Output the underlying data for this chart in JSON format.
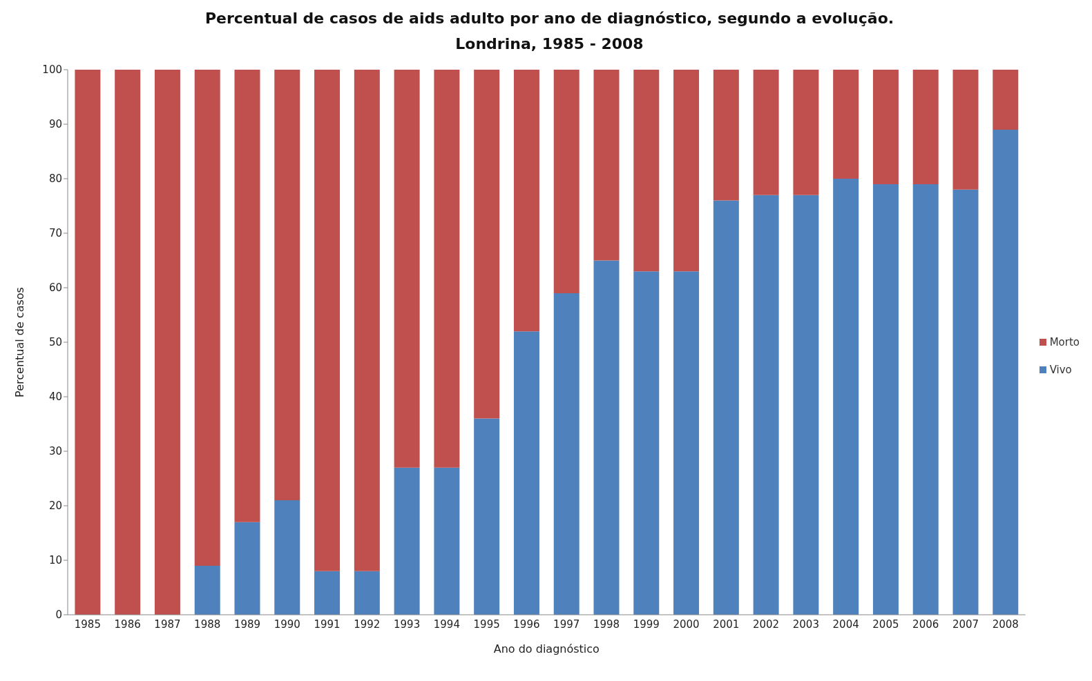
{
  "chart_data": {
    "type": "bar",
    "title": "Percentual de casos de aids adulto por ano de diagnóstico, segundo a evolução.",
    "subtitle": "Londrina, 1985  - 2008",
    "xlabel": "Ano do diagnóstico",
    "ylabel": "Percentual de casos",
    "categories": [
      "1985",
      "1986",
      "1987",
      "1988",
      "1989",
      "1990",
      "1991",
      "1992",
      "1993",
      "1994",
      "1995",
      "1996",
      "1997",
      "1998",
      "1999",
      "2000",
      "2001",
      "2002",
      "2003",
      "2004",
      "2005",
      "2006",
      "2007",
      "2008"
    ],
    "stacked": true,
    "series": [
      {
        "name": "Vivo",
        "color": "#4f81bd",
        "values": [
          0,
          0,
          0,
          9,
          17,
          21,
          8,
          8,
          27,
          27,
          36,
          52,
          59,
          65,
          63,
          63,
          76,
          77,
          77,
          80,
          79,
          79,
          78,
          89
        ]
      },
      {
        "name": "Morto",
        "color": "#c0504d",
        "values": [
          100,
          100,
          100,
          91,
          83,
          79,
          92,
          92,
          73,
          73,
          64,
          48,
          41,
          35,
          37,
          37,
          24,
          23,
          23,
          20,
          21,
          21,
          22,
          11
        ]
      }
    ],
    "ylim": [
      0,
      100
    ],
    "yticks": [
      0,
      10,
      20,
      30,
      40,
      50,
      60,
      70,
      80,
      90,
      100
    ],
    "grid": false,
    "legend": "right"
  }
}
